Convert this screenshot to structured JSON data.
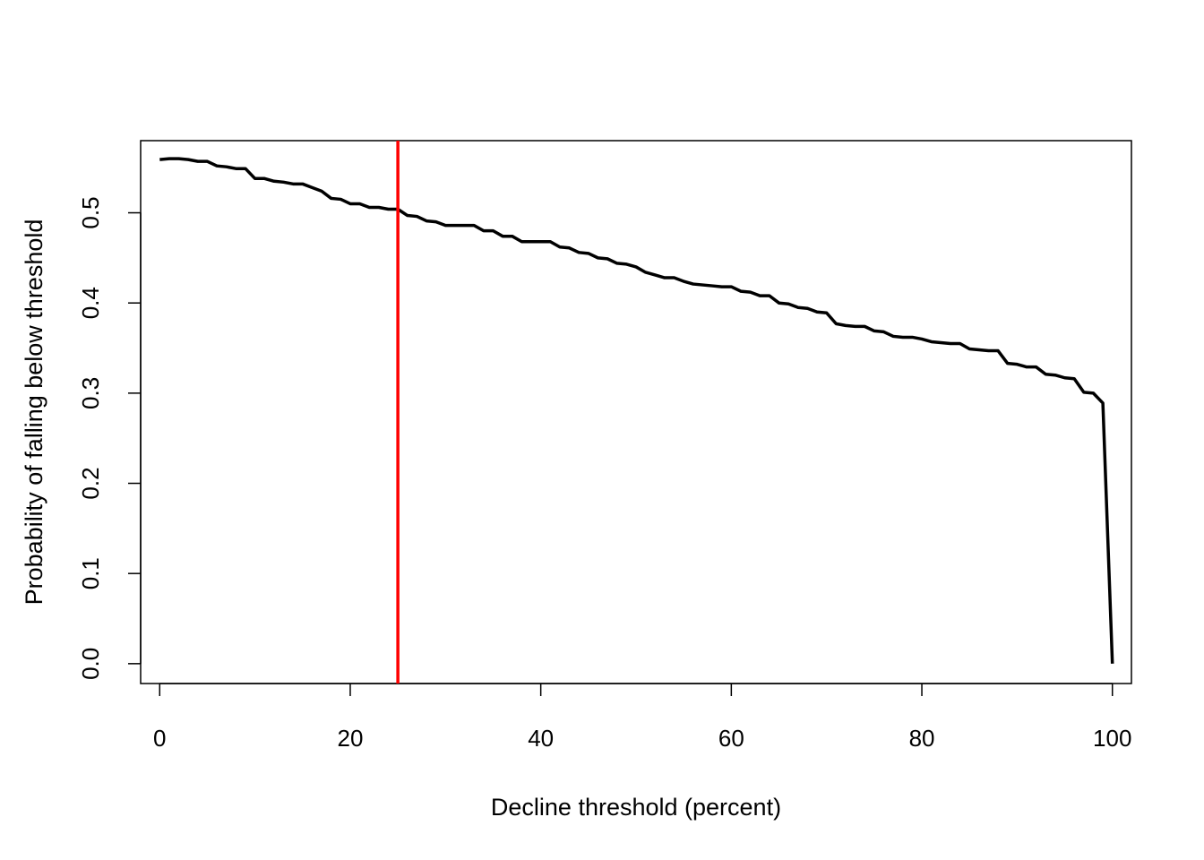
{
  "chart_data": {
    "type": "line",
    "title": "",
    "xlabel": "Decline threshold (percent)",
    "ylabel": "Probability of falling below threshold",
    "xlim": [
      -2,
      102
    ],
    "ylim": [
      -0.022,
      0.58
    ],
    "grid": false,
    "x_ticks": [
      0,
      20,
      40,
      60,
      80,
      100
    ],
    "x_tick_labels": [
      "0",
      "20",
      "40",
      "60",
      "80",
      "100"
    ],
    "y_ticks": [
      0.0,
      0.1,
      0.2,
      0.3,
      0.4,
      0.5
    ],
    "y_tick_labels": [
      "0.0",
      "0.1",
      "0.2",
      "0.3",
      "0.4",
      "0.5"
    ],
    "series": [
      {
        "color": "#000000",
        "x": [
          0,
          1,
          2,
          3,
          4,
          5,
          6,
          7,
          8,
          9,
          10,
          11,
          12,
          13,
          14,
          15,
          16,
          17,
          18,
          19,
          20,
          21,
          22,
          23,
          24,
          25,
          26,
          27,
          28,
          29,
          30,
          31,
          32,
          33,
          34,
          35,
          36,
          37,
          38,
          39,
          40,
          41,
          42,
          43,
          44,
          45,
          46,
          47,
          48,
          49,
          50,
          51,
          52,
          53,
          54,
          55,
          56,
          57,
          58,
          59,
          60,
          61,
          62,
          63,
          64,
          65,
          66,
          67,
          68,
          69,
          70,
          71,
          72,
          73,
          74,
          75,
          76,
          77,
          78,
          79,
          80,
          81,
          82,
          83,
          84,
          85,
          86,
          87,
          88,
          89,
          90,
          91,
          92,
          93,
          94,
          95,
          96,
          97,
          98,
          99,
          100
        ],
        "y": [
          0.559,
          0.56,
          0.56,
          0.559,
          0.557,
          0.557,
          0.552,
          0.551,
          0.549,
          0.549,
          0.538,
          0.538,
          0.535,
          0.534,
          0.532,
          0.532,
          0.528,
          0.524,
          0.516,
          0.515,
          0.51,
          0.51,
          0.506,
          0.506,
          0.504,
          0.504,
          0.497,
          0.496,
          0.491,
          0.49,
          0.486,
          0.486,
          0.486,
          0.486,
          0.48,
          0.48,
          0.474,
          0.474,
          0.468,
          0.468,
          0.468,
          0.468,
          0.462,
          0.461,
          0.456,
          0.455,
          0.45,
          0.449,
          0.444,
          0.443,
          0.44,
          0.434,
          0.431,
          0.428,
          0.428,
          0.424,
          0.421,
          0.42,
          0.419,
          0.418,
          0.418,
          0.413,
          0.412,
          0.408,
          0.408,
          0.4,
          0.399,
          0.395,
          0.394,
          0.39,
          0.389,
          0.377,
          0.375,
          0.374,
          0.374,
          0.369,
          0.368,
          0.363,
          0.362,
          0.362,
          0.36,
          0.357,
          0.356,
          0.355,
          0.355,
          0.349,
          0.348,
          0.347,
          0.347,
          0.333,
          0.332,
          0.329,
          0.329,
          0.321,
          0.32,
          0.317,
          0.316,
          0.301,
          0.3,
          0.289,
          0.0
        ]
      }
    ],
    "reference_lines": [
      {
        "orientation": "vertical",
        "x": 25,
        "color": "#ff0000"
      }
    ]
  }
}
